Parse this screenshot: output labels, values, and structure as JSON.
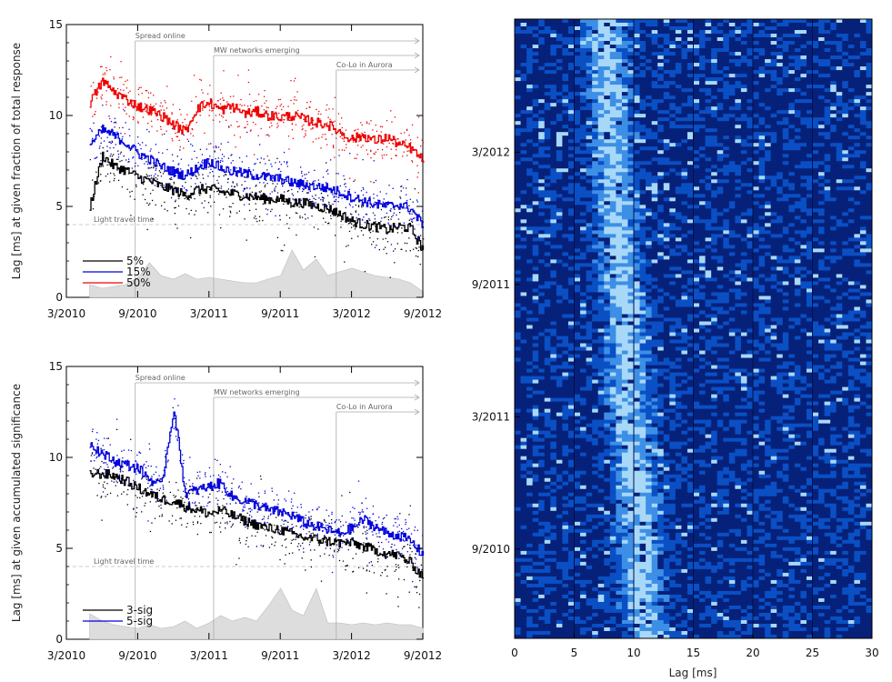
{
  "chart_data": [
    {
      "type": "line",
      "ylabel": "Lag [ms] at given fraction of total response",
      "ylim": [
        0,
        15
      ],
      "y_ticks": [
        "0",
        "5",
        "10",
        "15"
      ],
      "x_tick_labels": [
        "3/2010",
        "9/2010",
        "3/2011",
        "9/2011",
        "3/2012",
        "9/2012"
      ],
      "x_tick_values": [
        2010.167,
        2010.667,
        2011.167,
        2011.667,
        2012.167,
        2012.667
      ],
      "xlim": [
        2010.167,
        2012.667
      ],
      "grid": false,
      "legend_position": "bottom-left",
      "annotations": [
        {
          "label": "Spread  online",
          "x": 2010.65,
          "y": 14.1
        },
        {
          "label": "MW networks emerging",
          "x": 2011.2,
          "y": 13.3
        },
        {
          "label": "Co-Lo in Aurora",
          "x": 2012.06,
          "y": 12.5
        }
      ],
      "light_travel": {
        "label": "Light travel time",
        "y": 4.0
      },
      "series": [
        {
          "name": "5%",
          "color": "#000000",
          "x": [
            2010.33,
            2010.42,
            2010.5,
            2010.58,
            2010.67,
            2010.75,
            2010.83,
            2010.92,
            2011.0,
            2011.08,
            2011.17,
            2011.25,
            2011.33,
            2011.42,
            2011.5,
            2011.58,
            2011.67,
            2011.75,
            2011.83,
            2011.92,
            2012.0,
            2012.08,
            2012.17,
            2012.25,
            2012.33,
            2012.42,
            2012.5,
            2012.58,
            2012.67
          ],
          "values": [
            5.0,
            7.8,
            7.2,
            7.0,
            6.6,
            6.4,
            6.1,
            5.9,
            5.6,
            5.9,
            6.0,
            5.8,
            5.7,
            5.6,
            5.5,
            5.4,
            5.4,
            5.2,
            5.2,
            5.0,
            4.9,
            4.6,
            4.2,
            4.0,
            3.9,
            3.7,
            3.9,
            3.8,
            2.6
          ]
        },
        {
          "name": "15%",
          "color": "#0000dd",
          "x": [
            2010.33,
            2010.42,
            2010.5,
            2010.58,
            2010.67,
            2010.75,
            2010.83,
            2010.92,
            2011.0,
            2011.08,
            2011.17,
            2011.25,
            2011.33,
            2011.42,
            2011.5,
            2011.58,
            2011.67,
            2011.75,
            2011.83,
            2011.92,
            2012.0,
            2012.08,
            2012.17,
            2012.25,
            2012.33,
            2012.42,
            2012.5,
            2012.58,
            2012.67
          ],
          "values": [
            8.4,
            9.2,
            8.9,
            8.5,
            7.9,
            7.6,
            7.2,
            6.9,
            6.7,
            7.1,
            7.5,
            7.1,
            6.9,
            6.8,
            6.7,
            6.6,
            6.5,
            6.3,
            6.2,
            6.1,
            6.0,
            5.8,
            5.5,
            5.3,
            5.1,
            5.0,
            5.1,
            4.9,
            3.9
          ]
        },
        {
          "name": "50%",
          "color": "#ee0000",
          "x": [
            2010.33,
            2010.42,
            2010.5,
            2010.58,
            2010.67,
            2010.75,
            2010.83,
            2010.92,
            2011.0,
            2011.08,
            2011.17,
            2011.25,
            2011.33,
            2011.42,
            2011.5,
            2011.58,
            2011.67,
            2011.75,
            2011.83,
            2011.92,
            2012.0,
            2012.08,
            2012.17,
            2012.25,
            2012.33,
            2012.42,
            2012.5,
            2012.58,
            2012.67
          ],
          "values": [
            10.7,
            11.9,
            11.3,
            10.9,
            10.5,
            10.3,
            10.0,
            9.5,
            9.1,
            10.4,
            10.7,
            10.3,
            10.5,
            10.1,
            10.2,
            10.0,
            9.9,
            10.0,
            9.8,
            9.6,
            9.5,
            9.1,
            8.7,
            8.9,
            8.6,
            8.8,
            8.4,
            8.2,
            7.5
          ]
        }
      ],
      "shaded_area": {
        "x": [
          2010.33,
          2010.42,
          2010.5,
          2010.58,
          2010.67,
          2010.75,
          2010.83,
          2010.92,
          2011.0,
          2011.08,
          2011.17,
          2011.25,
          2011.33,
          2011.42,
          2011.5,
          2011.58,
          2011.67,
          2011.75,
          2011.83,
          2011.92,
          2012.0,
          2012.08,
          2012.17,
          2012.25,
          2012.33,
          2012.42,
          2012.5,
          2012.58,
          2012.67
        ],
        "values": [
          0.7,
          0.5,
          0.6,
          0.7,
          1.1,
          1.9,
          1.2,
          1.0,
          1.3,
          1.0,
          1.1,
          1.0,
          0.9,
          0.8,
          0.8,
          1.0,
          1.2,
          2.6,
          1.5,
          2.1,
          1.2,
          1.4,
          1.6,
          1.4,
          1.2,
          1.1,
          1.0,
          0.8,
          0.3
        ]
      }
    },
    {
      "type": "line",
      "ylabel": "Lag [ms] at given accumulated significance",
      "ylim": [
        0,
        15
      ],
      "y_ticks": [
        "0",
        "5",
        "10",
        "15"
      ],
      "x_tick_labels": [
        "3/2010",
        "9/2010",
        "3/2011",
        "9/2011",
        "3/2012",
        "9/2012"
      ],
      "x_tick_values": [
        2010.167,
        2010.667,
        2011.167,
        2011.667,
        2012.167,
        2012.667
      ],
      "xlim": [
        2010.167,
        2012.667
      ],
      "grid": false,
      "legend_position": "bottom-left",
      "annotations": [
        {
          "label": "Spread  online",
          "x": 2010.65,
          "y": 14.1
        },
        {
          "label": "MW networks emerging",
          "x": 2011.2,
          "y": 13.3
        },
        {
          "label": "Co-Lo in Aurora",
          "x": 2012.06,
          "y": 12.5
        }
      ],
      "light_travel": {
        "label": "Light travel time",
        "y": 4.0
      },
      "series": [
        {
          "name": "3-sig",
          "color": "#000000",
          "x": [
            2010.33,
            2010.42,
            2010.5,
            2010.58,
            2010.67,
            2010.75,
            2010.83,
            2010.92,
            2011.0,
            2011.08,
            2011.17,
            2011.25,
            2011.33,
            2011.42,
            2011.5,
            2011.58,
            2011.67,
            2011.75,
            2011.83,
            2011.92,
            2012.0,
            2012.08,
            2012.17,
            2012.25,
            2012.33,
            2012.42,
            2012.5,
            2012.58,
            2012.67
          ],
          "values": [
            9.1,
            9.1,
            9.0,
            8.7,
            8.3,
            8.0,
            7.7,
            7.6,
            7.3,
            7.1,
            6.9,
            7.1,
            6.8,
            6.5,
            6.3,
            6.1,
            6.0,
            5.8,
            5.6,
            5.5,
            5.4,
            5.3,
            5.3,
            5.1,
            4.9,
            4.7,
            4.6,
            4.2,
            3.4
          ]
        },
        {
          "name": "5-sig",
          "color": "#0000dd",
          "x": [
            2010.33,
            2010.42,
            2010.5,
            2010.58,
            2010.67,
            2010.75,
            2010.83,
            2010.92,
            2011.0,
            2011.08,
            2011.17,
            2011.25,
            2011.33,
            2011.42,
            2011.5,
            2011.58,
            2011.67,
            2011.75,
            2011.83,
            2011.92,
            2012.0,
            2012.08,
            2012.17,
            2012.25,
            2012.33,
            2012.42,
            2012.5,
            2012.58,
            2012.67
          ],
          "values": [
            10.8,
            10.2,
            9.8,
            9.6,
            9.4,
            8.8,
            8.4,
            12.7,
            8.0,
            8.2,
            8.4,
            8.6,
            7.8,
            7.6,
            7.4,
            7.1,
            7.0,
            6.8,
            6.4,
            6.2,
            6.0,
            5.8,
            6.1,
            6.6,
            6.2,
            5.8,
            5.7,
            5.4,
            4.6
          ]
        }
      ],
      "shaded_area": {
        "x": [
          2010.33,
          2010.42,
          2010.5,
          2010.58,
          2010.67,
          2010.75,
          2010.83,
          2010.92,
          2011.0,
          2011.08,
          2011.17,
          2011.25,
          2011.33,
          2011.42,
          2011.5,
          2011.58,
          2011.67,
          2011.75,
          2011.83,
          2011.92,
          2012.0,
          2012.08,
          2012.17,
          2012.25,
          2012.33,
          2012.42,
          2012.5,
          2012.58,
          2012.67
        ],
        "values": [
          1.4,
          1.0,
          0.8,
          0.7,
          0.6,
          0.8,
          0.6,
          0.7,
          1.0,
          0.6,
          0.9,
          1.3,
          1.0,
          1.2,
          1.0,
          1.8,
          2.8,
          1.6,
          1.3,
          2.8,
          0.9,
          0.9,
          0.8,
          0.9,
          0.8,
          0.9,
          0.8,
          0.8,
          0.6
        ]
      }
    },
    {
      "type": "heatmap",
      "xlabel": "Lag [ms]",
      "xlim": [
        0,
        30
      ],
      "x_ticks": [
        "0",
        "5",
        "10",
        "15",
        "20",
        "25",
        "30"
      ],
      "y_tick_labels": [
        "3/2012",
        "9/2011",
        "3/2011",
        "9/2010"
      ],
      "y_tick_values": [
        2012.167,
        2011.667,
        2011.167,
        2010.667
      ],
      "ylim": [
        2010.33,
        2012.67
      ],
      "colormap": [
        "#06217a",
        "#0a4fc4",
        "#3d8fe6",
        "#a8d8f8"
      ],
      "ridge_lag_ms": {
        "start": 11.0,
        "end": 7.5
      },
      "grid": false
    }
  ]
}
